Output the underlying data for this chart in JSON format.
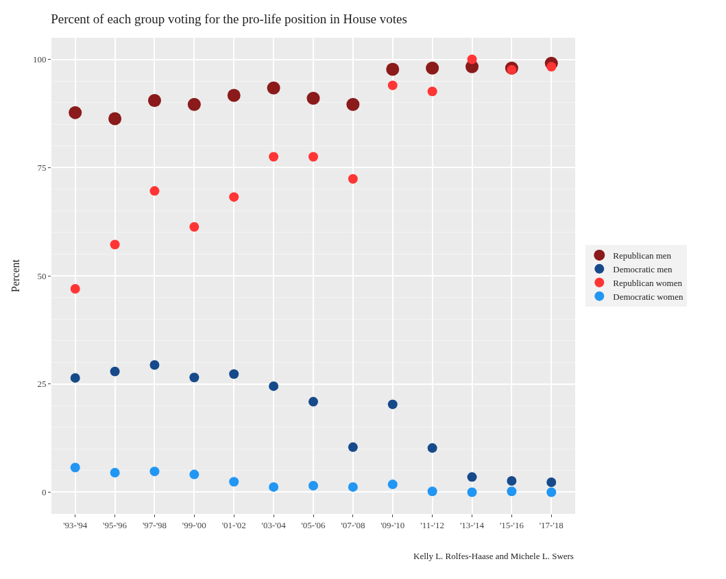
{
  "chart_data": {
    "type": "scatter",
    "title": "Percent of each group voting for the pro-life position in House votes",
    "ylabel": "Percent",
    "categories": [
      "'93-'94",
      "'95-'96",
      "'97-'98",
      "'99-'00",
      "'01-'02",
      "'03-'04",
      "'05-'06",
      "'07-'08",
      "'09-'10",
      "'11-'12",
      "'13-'14",
      "'15-'16",
      "'17-'18"
    ],
    "series": [
      {
        "name": "Republican men",
        "color": "#8b1a1a",
        "values": [
          87.7,
          86.3,
          90.5,
          89.6,
          91.7,
          93.4,
          91.0,
          89.6,
          97.7,
          98.0,
          98.3,
          98.0,
          99.1
        ]
      },
      {
        "name": "Democratic men",
        "color": "#164a8a",
        "values": [
          26.4,
          27.9,
          29.4,
          26.5,
          27.3,
          24.5,
          20.9,
          10.4,
          20.3,
          10.2,
          3.5,
          2.6,
          2.3
        ]
      },
      {
        "name": "Republican women",
        "color": "#ff3535",
        "values": [
          47.0,
          57.2,
          69.6,
          61.3,
          68.2,
          77.5,
          77.5,
          72.4,
          94.0,
          92.6,
          100,
          97.6,
          98.3
        ]
      },
      {
        "name": "Democratic women",
        "color": "#2196f3",
        "values": [
          5.7,
          4.5,
          4.8,
          4.1,
          2.4,
          1.2,
          1.5,
          1.2,
          1.8,
          0.2,
          0,
          0.2,
          0
        ]
      }
    ],
    "ylim": [
      -5,
      105
    ],
    "yticks": [
      0,
      25,
      50,
      75,
      100
    ],
    "grid": true,
    "legend": "right",
    "marker": "circle",
    "annotations": [
      "Kelly L. Rolfes-Haase and Michele L. Swers"
    ]
  }
}
